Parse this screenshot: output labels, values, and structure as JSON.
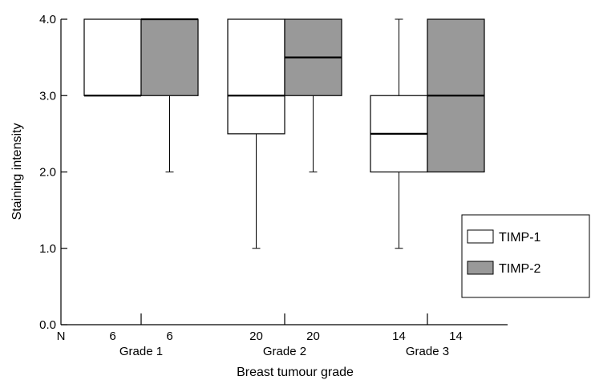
{
  "chart_data": {
    "type": "boxplot",
    "xlabel": "Breast tumour grade",
    "ylabel": "Staining intensity",
    "ylim": [
      0,
      4
    ],
    "yticks": [
      {
        "value": 0,
        "label": "0.0"
      },
      {
        "value": 1,
        "label": "1.0"
      },
      {
        "value": 2,
        "label": "2.0"
      },
      {
        "value": 3,
        "label": "3.0"
      },
      {
        "value": 4,
        "label": "4.0"
      }
    ],
    "n_label": "N",
    "categories": [
      "Grade 1",
      "Grade 2",
      "Grade 3"
    ],
    "series": [
      {
        "name": "TIMP-1",
        "color": "#ffffff",
        "n": [
          "6",
          "20",
          "14"
        ],
        "boxes": [
          {
            "min": 3,
            "q1": 3,
            "median": 3,
            "q3": 4,
            "max": 4
          },
          {
            "min": 1,
            "q1": 2.5,
            "median": 3,
            "q3": 4,
            "max": 4
          },
          {
            "min": 1,
            "q1": 2,
            "median": 2.5,
            "q3": 3,
            "max": 4
          }
        ]
      },
      {
        "name": "TIMP-2",
        "color": "#999999",
        "n": [
          "6",
          "20",
          "14"
        ],
        "boxes": [
          {
            "min": 2,
            "q1": 3,
            "median": 4,
            "q3": 4,
            "max": 4
          },
          {
            "min": 2,
            "q1": 3,
            "median": 3.5,
            "q3": 4,
            "max": 4
          },
          {
            "min": 2,
            "q1": 2,
            "median": 3,
            "q3": 4,
            "max": 4
          }
        ]
      }
    ],
    "legend": {
      "position": "right",
      "items": [
        {
          "label": "TIMP-1",
          "color": "#ffffff"
        },
        {
          "label": "TIMP-2",
          "color": "#999999"
        }
      ]
    },
    "grid": false
  }
}
